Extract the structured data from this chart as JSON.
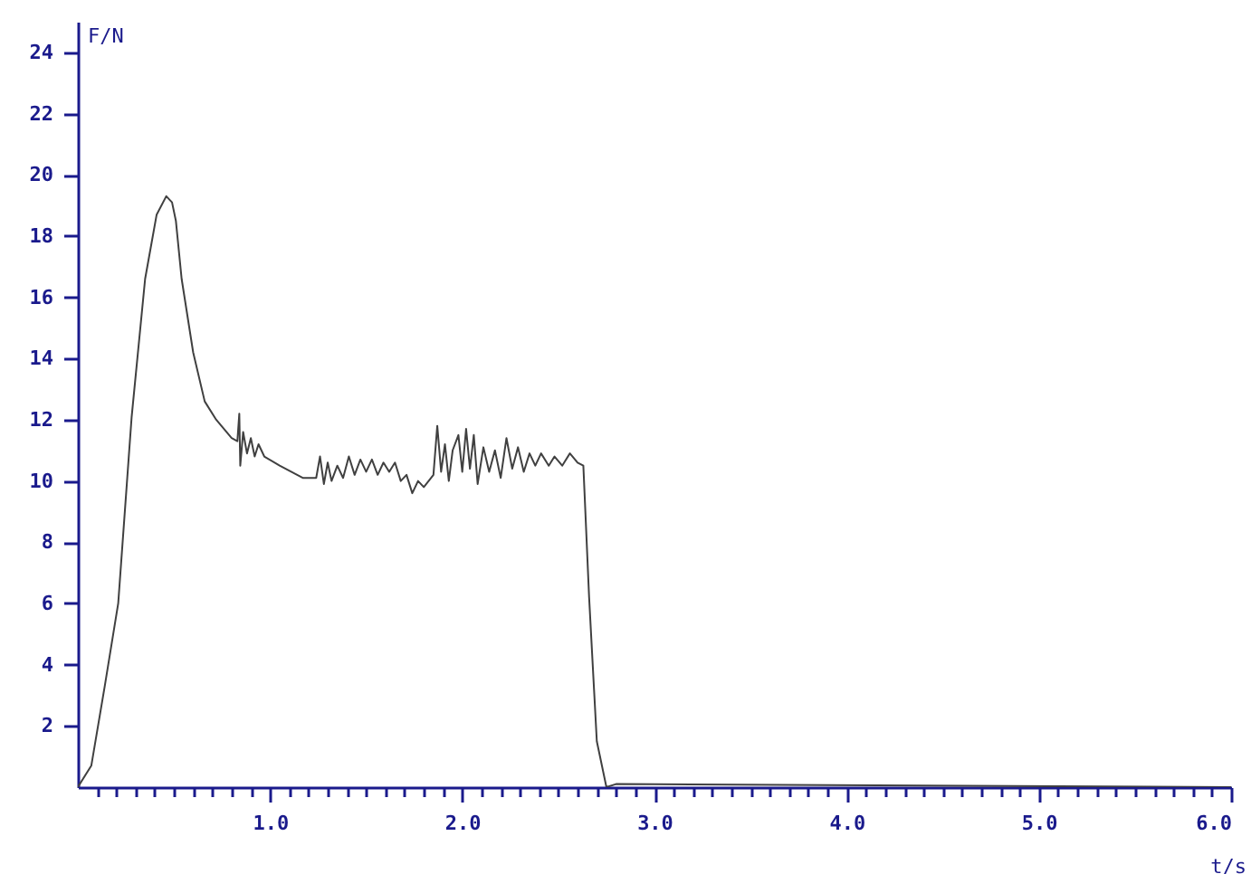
{
  "chart_data": {
    "type": "line",
    "xlabel": "t/s",
    "ylabel": "F/N",
    "line_style": "solid",
    "x": [
      0,
      0.07,
      0.14,
      0.21,
      0.28,
      0.35,
      0.41,
      0.46,
      0.49,
      0.51,
      0.54,
      0.6,
      0.66,
      0.72,
      0.8,
      0.83,
      0.84,
      0.845,
      0.86,
      0.88,
      0.9,
      0.92,
      0.94,
      0.97,
      1.05,
      1.17,
      1.24,
      1.26,
      1.28,
      1.3,
      1.32,
      1.35,
      1.38,
      1.41,
      1.44,
      1.47,
      1.5,
      1.53,
      1.56,
      1.59,
      1.62,
      1.65,
      1.68,
      1.71,
      1.74,
      1.77,
      1.8,
      1.85,
      1.87,
      1.89,
      1.91,
      1.93,
      1.95,
      1.98,
      2.0,
      2.02,
      2.04,
      2.06,
      2.08,
      2.11,
      2.14,
      2.17,
      2.2,
      2.23,
      2.26,
      2.29,
      2.32,
      2.35,
      2.38,
      2.41,
      2.45,
      2.48,
      2.52,
      2.56,
      2.6,
      2.63,
      2.66,
      2.7,
      2.75,
      2.8,
      6.0
    ],
    "series": [
      {
        "color": "#404040",
        "values": [
          0,
          0.7,
          3.3,
          6.0,
          12.1,
          16.6,
          18.7,
          19.3,
          19.1,
          18.5,
          16.6,
          14.2,
          12.6,
          12.0,
          11.4,
          11.3,
          12.2,
          10.5,
          11.6,
          10.9,
          11.4,
          10.8,
          11.2,
          10.8,
          10.5,
          10.1,
          10.1,
          10.8,
          9.9,
          10.6,
          10.0,
          10.5,
          10.1,
          10.8,
          10.2,
          10.7,
          10.3,
          10.7,
          10.2,
          10.6,
          10.3,
          10.6,
          10.0,
          10.2,
          9.6,
          10.0,
          9.8,
          10.2,
          11.8,
          10.3,
          11.2,
          10.0,
          11.0,
          11.5,
          10.3,
          11.7,
          10.4,
          11.5,
          9.9,
          11.1,
          10.3,
          11.0,
          10.1,
          11.4,
          10.4,
          11.1,
          10.3,
          10.9,
          10.5,
          10.9,
          10.5,
          10.8,
          10.5,
          10.9,
          10.6,
          10.5,
          6.2,
          1.5,
          0,
          0.1,
          0
        ]
      }
    ],
    "xlim": [
      0,
      6.0
    ],
    "ylim": [
      0,
      25
    ],
    "xticks": [
      {
        "value": 0.1,
        "label": null
      },
      {
        "value": 0.2,
        "label": null
      },
      {
        "value": 0.3,
        "label": null
      },
      {
        "value": 0.4,
        "label": null
      },
      {
        "value": 0.5,
        "label": null
      },
      {
        "value": 0.6,
        "label": null
      },
      {
        "value": 0.7,
        "label": null
      },
      {
        "value": 0.8,
        "label": null
      },
      {
        "value": 0.9,
        "label": null
      },
      {
        "value": 1,
        "label": "1.0"
      },
      {
        "value": 1.1,
        "label": null
      },
      {
        "value": 1.2,
        "label": null
      },
      {
        "value": 1.3,
        "label": null
      },
      {
        "value": 1.4,
        "label": null
      },
      {
        "value": 1.5,
        "label": null
      },
      {
        "value": 1.6,
        "label": null
      },
      {
        "value": 1.7,
        "label": null
      },
      {
        "value": 1.8,
        "label": null
      },
      {
        "value": 1.9,
        "label": null
      },
      {
        "value": 2,
        "label": "2.0"
      },
      {
        "value": 2.1,
        "label": null
      },
      {
        "value": 2.2,
        "label": null
      },
      {
        "value": 2.3,
        "label": null
      },
      {
        "value": 2.4,
        "label": null
      },
      {
        "value": 2.5,
        "label": null
      },
      {
        "value": 2.6,
        "label": null
      },
      {
        "value": 2.7,
        "label": null
      },
      {
        "value": 2.8,
        "label": null
      },
      {
        "value": 2.9,
        "label": null
      },
      {
        "value": 3,
        "label": "3.0"
      },
      {
        "value": 3.1,
        "label": null
      },
      {
        "value": 3.2,
        "label": null
      },
      {
        "value": 3.3,
        "label": null
      },
      {
        "value": 3.4,
        "label": null
      },
      {
        "value": 3.5,
        "label": null
      },
      {
        "value": 3.6,
        "label": null
      },
      {
        "value": 3.7,
        "label": null
      },
      {
        "value": 3.8,
        "label": null
      },
      {
        "value": 3.9,
        "label": null
      },
      {
        "value": 4,
        "label": "4.0"
      },
      {
        "value": 4.1,
        "label": null
      },
      {
        "value": 4.2,
        "label": null
      },
      {
        "value": 4.3,
        "label": null
      },
      {
        "value": 4.4,
        "label": null
      },
      {
        "value": 4.5,
        "label": null
      },
      {
        "value": 4.6,
        "label": null
      },
      {
        "value": 4.7,
        "label": null
      },
      {
        "value": 4.8,
        "label": null
      },
      {
        "value": 4.9,
        "label": null
      },
      {
        "value": 5,
        "label": "5.0"
      },
      {
        "value": 5.1,
        "label": null
      },
      {
        "value": 5.2,
        "label": null
      },
      {
        "value": 5.3,
        "label": null
      },
      {
        "value": 5.4,
        "label": null
      },
      {
        "value": 5.5,
        "label": null
      },
      {
        "value": 5.6,
        "label": null
      },
      {
        "value": 5.7,
        "label": null
      },
      {
        "value": 5.8,
        "label": null
      },
      {
        "value": 5.9,
        "label": null
      },
      {
        "value": 6,
        "label": "6.0"
      }
    ],
    "yticks": [
      2,
      4,
      6,
      8,
      10,
      12,
      14,
      16,
      18,
      20,
      22,
      24
    ]
  }
}
